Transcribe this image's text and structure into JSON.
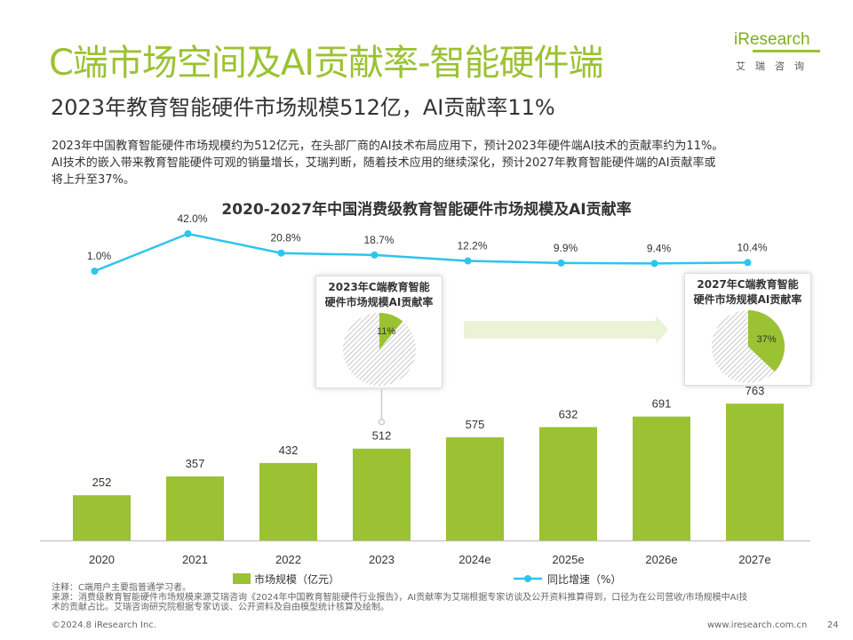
{
  "header": {
    "title": "C端市场空间及AI贡献率-智能硬件端",
    "subtitle": "2023年教育智能硬件市场规模512亿，AI贡献率11%"
  },
  "logo": {
    "word": "iResearch",
    "cn": "艾瑞咨询"
  },
  "description": {
    "line1": "2023年中国教育智能硬件市场规模约为512亿元，在头部厂商的AI技术布局应用下，预计2023年硬件端AI技术的贡献率约为11%。",
    "line2": "AI技术的嵌入带来教育智能硬件可观的销量增长，艾瑞判断，随着技术应用的继续深化，预计2027年教育智能硬件端的AI贡献率或",
    "line3": "将上升至37%。"
  },
  "chart_data": {
    "type": "bar+line",
    "title": "2020-2027年中国消费级教育智能硬件市场规模及AI贡献率",
    "categories": [
      "2020",
      "2021",
      "2022",
      "2023",
      "2024e",
      "2025e",
      "2026e",
      "2027e"
    ],
    "series": [
      {
        "name": "市场规模（亿元）",
        "type": "bar",
        "values": [
          252,
          357,
          432,
          512,
          575,
          632,
          691,
          763
        ],
        "labels": [
          "252",
          "357",
          "432",
          "512",
          "575",
          "632",
          "691",
          "763"
        ]
      },
      {
        "name": "同比增速（%）",
        "type": "line",
        "values": [
          1.0,
          42.0,
          20.8,
          18.7,
          12.2,
          9.9,
          9.4,
          10.4
        ],
        "labels": [
          "1.0%",
          "42.0%",
          "20.8%",
          "18.7%",
          "12.2%",
          "9.9%",
          "9.4%",
          "10.4%"
        ]
      }
    ],
    "bar_ylim": [
      0,
      800
    ],
    "line_ylim": [
      -10,
      45
    ],
    "legend": {
      "bar": "市场规模（亿元）",
      "line": "同比增速（%）",
      "position": "bottom"
    },
    "insets": [
      {
        "title_line1": "2023年C端教育智能",
        "title_line2": "硬件市场规模AI贡献率",
        "ai_share": 11,
        "label": "11%",
        "year_index": 3
      },
      {
        "title_line1": "2027年C端教育智能",
        "title_line2": "硬件市场规模AI贡献率",
        "ai_share": 37,
        "label": "37%",
        "year_index": 7
      }
    ]
  },
  "colors": {
    "bar": "#9bc232",
    "line": "#2ec4ee",
    "accent": "#9bc232",
    "arrow": "#ebf3d6",
    "hatch": "#bbbbbb"
  },
  "footer": {
    "note": "注释：C端用户主要指普通学习者。",
    "source1": "来源：消费级教育智能硬件市场规模来源艾瑞咨询《2024年中国教育智能硬件行业报告》，AI贡献率为艾瑞根据专家访谈及公开资料推算得到，口径为在公司营收/市场规模中AI技",
    "source2": "术的贡献占比。艾瑞咨询研究院根据专家访谈、公开资料及自由模型统计核算及绘制。",
    "copyright": "©2024.8 iResearch Inc.",
    "site": "www.iresearch.com.cn",
    "page": "24"
  }
}
